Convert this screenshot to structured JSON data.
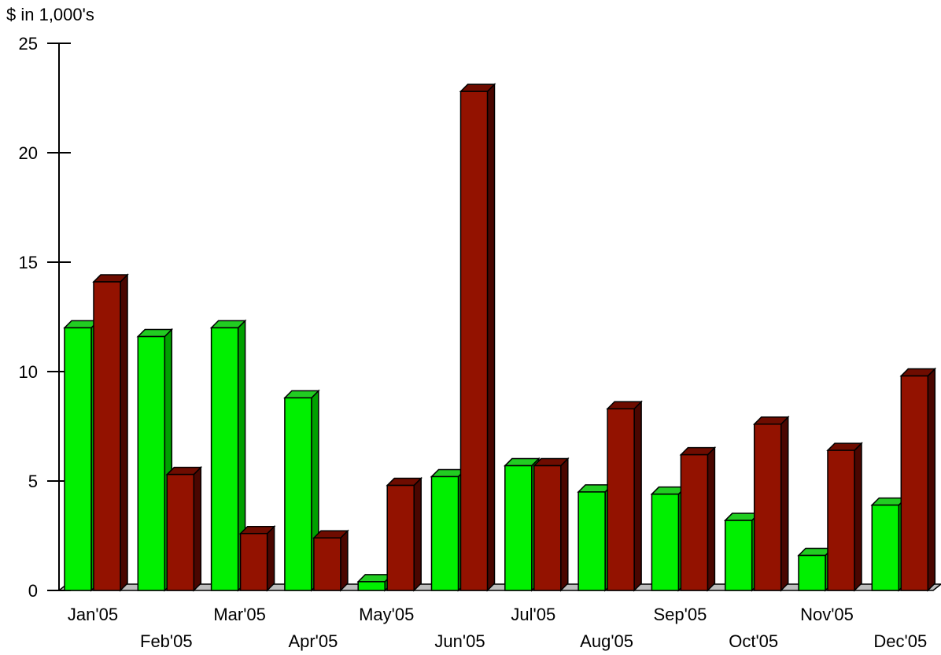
{
  "chart_data": {
    "type": "bar",
    "ylabel": "$ in 1,000's",
    "ylim": [
      0,
      25
    ],
    "yticks": [
      "0",
      "5",
      "10",
      "15",
      "20",
      "25"
    ],
    "categories": [
      "Jan'05",
      "Feb'05",
      "Mar'05",
      "Apr'05",
      "May'05",
      "Jun'05",
      "Jul'05",
      "Aug'05",
      "Sep'05",
      "Oct'05",
      "Nov'05",
      "Dec'05"
    ],
    "series": [
      {
        "values": [
          12.0,
          11.6,
          12.0,
          8.8,
          0.4,
          5.2,
          5.7,
          4.5,
          4.4,
          3.2,
          1.6,
          3.9
        ],
        "color": "#00f000",
        "side_color": "#00a000",
        "top_color": "#22cc22"
      },
      {
        "values": [
          14.1,
          5.3,
          2.6,
          2.4,
          4.8,
          22.8,
          5.7,
          8.3,
          6.2,
          7.6,
          6.4,
          9.8
        ],
        "color": "#931200",
        "side_color": "#4a0600",
        "top_color": "#6e0c00"
      }
    ],
    "grid": false,
    "legend": "none"
  }
}
